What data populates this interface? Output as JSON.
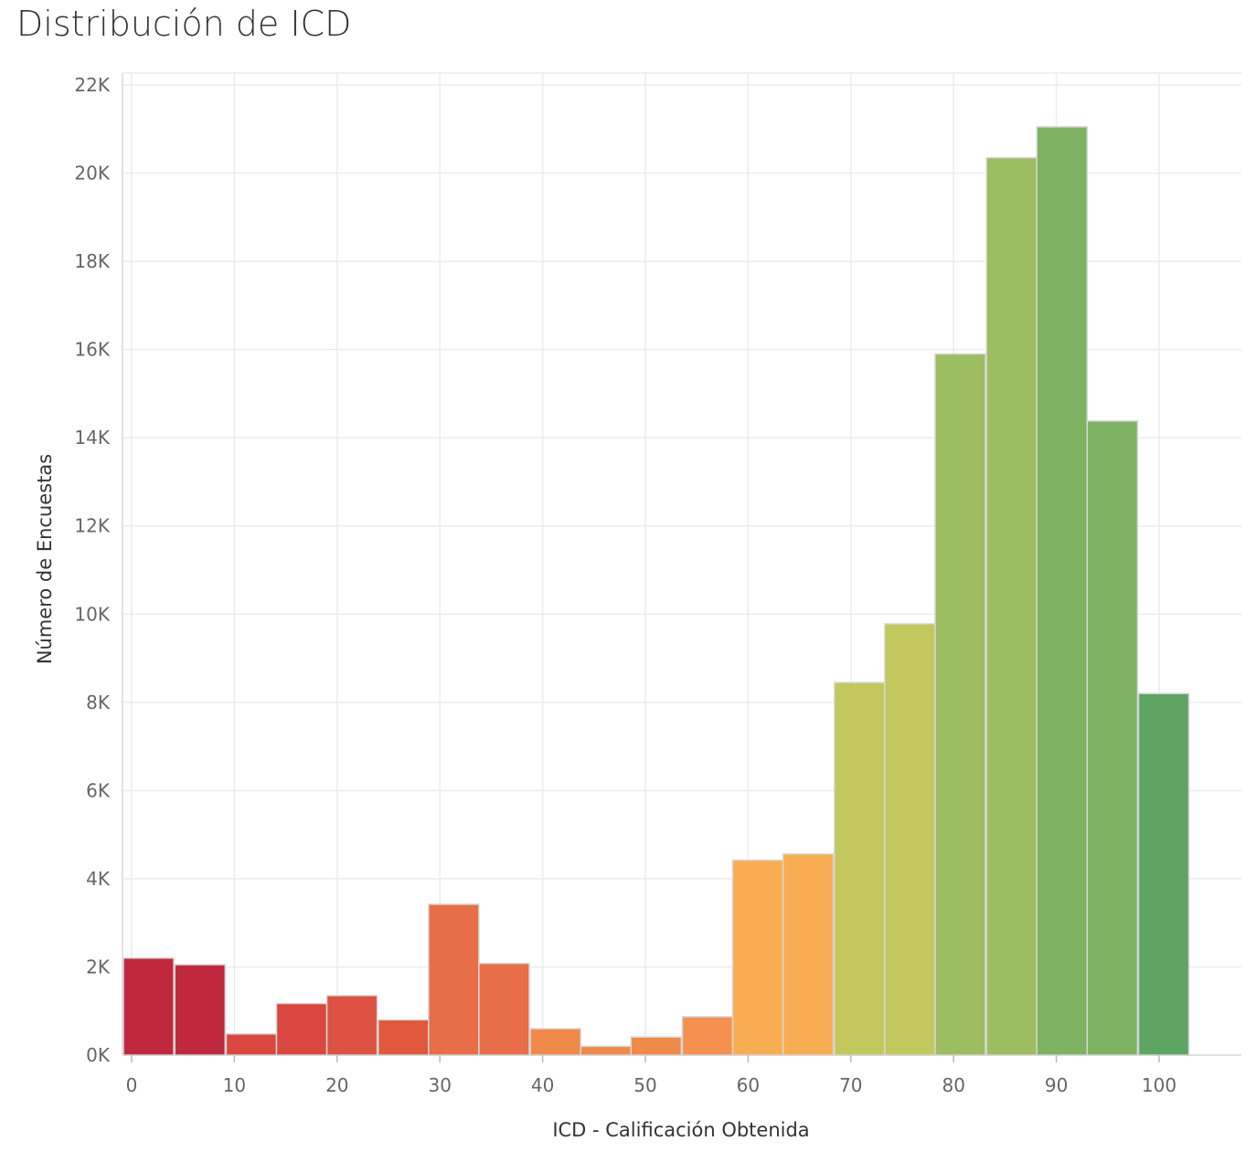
{
  "chart_data": {
    "type": "bar",
    "title": "Distribución de ICD",
    "xlabel": "ICD - Calificación Obtenida",
    "ylabel": "Número de Encuestas",
    "x_ticks": [
      "0",
      "10",
      "20",
      "30",
      "40",
      "50",
      "60",
      "70",
      "80",
      "90",
      "100"
    ],
    "y_ticks": [
      "0K",
      "2K",
      "4K",
      "6K",
      "8K",
      "10K",
      "12K",
      "14K",
      "16K",
      "18K",
      "20K",
      "22K"
    ],
    "xlim": [
      -1,
      107
    ],
    "ylim": [
      0,
      22000
    ],
    "grid": true,
    "bin_width": 4.9,
    "bins": [
      {
        "start": -0.8,
        "value": 2200,
        "color": "#c0293d"
      },
      {
        "start": 4.2,
        "value": 2050,
        "color": "#c0293d"
      },
      {
        "start": 9.2,
        "value": 480,
        "color": "#d9473f"
      },
      {
        "start": 14.1,
        "value": 1170,
        "color": "#d9473f"
      },
      {
        "start": 19.0,
        "value": 1350,
        "color": "#dd5242"
      },
      {
        "start": 24.0,
        "value": 800,
        "color": "#e0593f"
      },
      {
        "start": 28.9,
        "value": 3420,
        "color": "#e86d49"
      },
      {
        "start": 33.8,
        "value": 2080,
        "color": "#e86d49"
      },
      {
        "start": 38.8,
        "value": 600,
        "color": "#f08a4b"
      },
      {
        "start": 43.7,
        "value": 200,
        "color": "#f08a4b"
      },
      {
        "start": 48.6,
        "value": 410,
        "color": "#f08a4b"
      },
      {
        "start": 53.6,
        "value": 870,
        "color": "#f49150"
      },
      {
        "start": 58.5,
        "value": 4420,
        "color": "#f9ad52"
      },
      {
        "start": 63.4,
        "value": 4560,
        "color": "#f9ad52"
      },
      {
        "start": 68.4,
        "value": 8450,
        "color": "#c2c75e"
      },
      {
        "start": 73.3,
        "value": 9780,
        "color": "#c2c75e"
      },
      {
        "start": 78.2,
        "value": 15900,
        "color": "#9dbd61"
      },
      {
        "start": 83.2,
        "value": 20350,
        "color": "#9dbd61"
      },
      {
        "start": 88.1,
        "value": 21050,
        "color": "#7db262"
      },
      {
        "start": 93.0,
        "value": 14380,
        "color": "#7db262"
      },
      {
        "start": 98.0,
        "value": 8200,
        "color": "#5ea563"
      }
    ]
  }
}
